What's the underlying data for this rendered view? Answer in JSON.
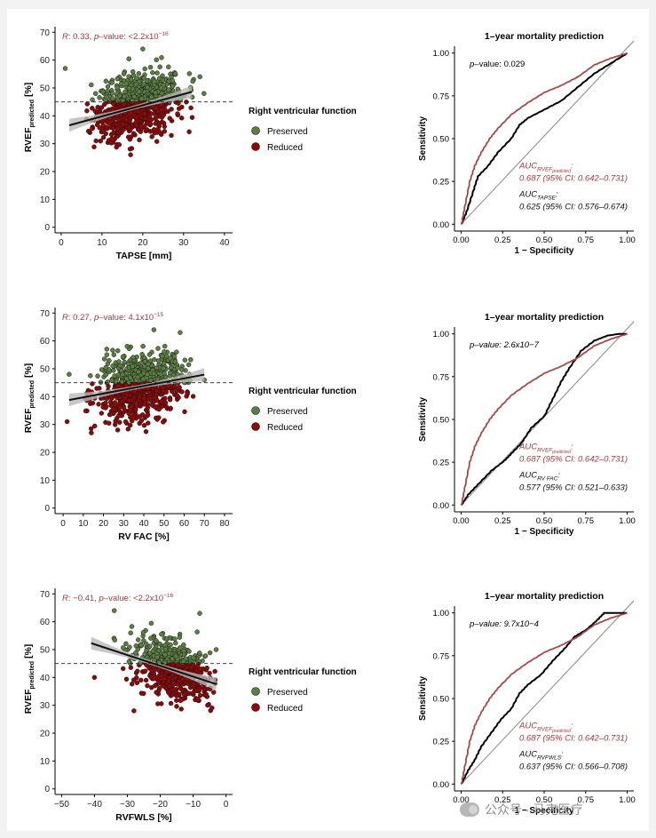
{
  "colors": {
    "preserved": "#5c7d44",
    "reduced": "#8b0b0b",
    "predicted_curve": "#a54848",
    "stat_text": "#a03a3a",
    "reg_line": "#111111",
    "ci_band": "#b9b9b9"
  },
  "legend": {
    "title": "Right ventricular function",
    "preserved": "Preserved",
    "reduced": "Reduced"
  },
  "chart_data": [
    {
      "type": "scatter",
      "id": "tapse_scatter",
      "xlabel": "TAPSE [mm]",
      "ylabel_main": "RVEF",
      "ylabel_sub": "predicted",
      "ylabel_unit": " [%]",
      "xlim": [
        -1.5,
        42
      ],
      "ylim": [
        -2,
        72
      ],
      "xticks": [
        0,
        10,
        20,
        30,
        40
      ],
      "yticks": [
        0,
        10,
        20,
        30,
        40,
        50,
        60,
        70
      ],
      "threshold": 45,
      "regression": {
        "x": [
          2,
          32
        ],
        "y": [
          36.6,
          48.6
        ]
      },
      "stat": {
        "r_label": "R",
        "r_value": ": 0.33, ",
        "p_label": "p",
        "p_value": "–value: <2.2x10",
        "p_exp": "−16"
      },
      "cloud": {
        "x_mean": 19,
        "x_sd": 5.5,
        "x_min": 6,
        "x_max": 35,
        "y_sd": 5.5,
        "y_min": 26,
        "y_max": 63,
        "slope": 0.4,
        "intercept": 35.8,
        "n": 800
      },
      "highlights": [
        {
          "x": 1,
          "y": 57
        },
        {
          "x": 34,
          "y": 54
        },
        {
          "x": 35,
          "y": 48
        },
        {
          "x": 20,
          "y": 64
        },
        {
          "x": 17,
          "y": 26
        }
      ]
    },
    {
      "type": "scatter",
      "id": "fac_scatter",
      "xlabel": "RV FAC [%]",
      "ylabel_main": "RVEF",
      "ylabel_sub": "predicted",
      "ylabel_unit": " [%]",
      "xlim": [
        -4,
        84
      ],
      "ylim": [
        -2,
        72
      ],
      "xticks": [
        0,
        10,
        20,
        30,
        40,
        50,
        60,
        70,
        80
      ],
      "yticks": [
        0,
        10,
        20,
        30,
        40,
        50,
        60,
        70
      ],
      "threshold": 45,
      "regression": {
        "x": [
          3,
          70
        ],
        "y": [
          38.8,
          47.9
        ]
      },
      "stat": {
        "r_label": "R",
        "r_value": ": 0.27, ",
        "p_label": "p",
        "p_value": "–value: 4.1x10",
        "p_exp": "−15"
      },
      "cloud": {
        "x_mean": 38,
        "x_sd": 11,
        "x_min": 10,
        "x_max": 66,
        "y_sd": 5.5,
        "y_min": 27,
        "y_max": 62,
        "slope": 0.135,
        "intercept": 38.4,
        "n": 800
      },
      "highlights": [
        {
          "x": 2,
          "y": 31
        },
        {
          "x": 3,
          "y": 48
        },
        {
          "x": 58,
          "y": 63
        },
        {
          "x": 45,
          "y": 64
        },
        {
          "x": 70,
          "y": 46
        },
        {
          "x": 14,
          "y": 27
        }
      ]
    },
    {
      "type": "scatter",
      "id": "rvfwls_scatter",
      "xlabel": "RVFWLS [%]",
      "ylabel_main": "RVEF",
      "ylabel_sub": "predicted",
      "ylabel_unit": " [%]",
      "xlim": [
        -52,
        2
      ],
      "ylim": [
        -2,
        72
      ],
      "xticks": [
        -50,
        -40,
        -30,
        -20,
        -10,
        0
      ],
      "xticklabels": [
        "−50",
        "−40",
        "−30",
        "−20",
        "−10",
        "0"
      ],
      "yticks": [
        0,
        10,
        20,
        30,
        40,
        50,
        60,
        70
      ],
      "threshold": 45,
      "regression": {
        "x": [
          -41,
          -3
        ],
        "y": [
          52.3,
          37.6
        ]
      },
      "stat": {
        "r_label": "R",
        "r_value": ": −0.41, ",
        "p_label": "p",
        "p_value": "–value: <2.2x10",
        "p_exp": "−16"
      },
      "cloud": {
        "x_mean": -16,
        "x_sd": 6,
        "x_min": -40,
        "x_max": -2,
        "y_sd": 5,
        "y_min": 27,
        "y_max": 62,
        "slope": -0.39,
        "intercept": 36.4,
        "n": 600
      },
      "highlights": [
        {
          "x": -34,
          "y": 64
        },
        {
          "x": -40,
          "y": 40
        },
        {
          "x": -8,
          "y": 63
        },
        {
          "x": -28,
          "y": 28
        },
        {
          "x": -3,
          "y": 50
        }
      ]
    },
    {
      "type": "line",
      "id": "roc_tapse",
      "title": "1–year mortality prediction",
      "xlabel": "1 − Specificity",
      "ylabel": "Sensitivity",
      "xlim": [
        0,
        1
      ],
      "ylim": [
        0,
        1
      ],
      "ticks": [
        0,
        0.25,
        0.5,
        0.75,
        1
      ],
      "ticklabels": [
        "0.00",
        "0.25",
        "0.50",
        "0.75",
        "1.00"
      ],
      "p_label": "p",
      "p_text": "–value: 0.029",
      "p_italic": false,
      "auc_pred": {
        "prefix": "AUC",
        "sub": "RVEF",
        "subsub": "predicted",
        "suffix": ":",
        "text": "0.687 (95% CI: 0.642–0.731)"
      },
      "auc_other": {
        "prefix": "AUC",
        "sub": "TAPSE",
        "suffix": ":",
        "text": "0.625 (95% CI: 0.576–0.674)"
      },
      "series": [
        {
          "name": "RVEF predicted",
          "x": [
            0,
            0.02,
            0.05,
            0.08,
            0.12,
            0.17,
            0.22,
            0.3,
            0.4,
            0.5,
            0.6,
            0.7,
            0.8,
            0.9,
            1
          ],
          "y": [
            0,
            0.1,
            0.25,
            0.34,
            0.42,
            0.5,
            0.56,
            0.64,
            0.71,
            0.77,
            0.81,
            0.86,
            0.93,
            0.97,
            1
          ]
        },
        {
          "name": "TAPSE",
          "x": [
            0,
            0.03,
            0.07,
            0.1,
            0.16,
            0.22,
            0.3,
            0.35,
            0.4,
            0.5,
            0.6,
            0.7,
            0.8,
            0.9,
            1
          ],
          "y": [
            0,
            0.07,
            0.19,
            0.28,
            0.34,
            0.42,
            0.5,
            0.58,
            0.62,
            0.67,
            0.72,
            0.8,
            0.88,
            0.94,
            1
          ]
        }
      ]
    },
    {
      "type": "line",
      "id": "roc_fac",
      "title": "1–year mortality prediction",
      "xlabel": "1 − Specificity",
      "ylabel": "Sensitivity",
      "xlim": [
        0,
        1
      ],
      "ylim": [
        0,
        1
      ],
      "ticks": [
        0,
        0.25,
        0.5,
        0.75,
        1
      ],
      "ticklabels": [
        "0.00",
        "0.25",
        "0.50",
        "0.75",
        "1.00"
      ],
      "p_label": "p",
      "p_text": "–value: 2.6x10−7",
      "p_italic": true,
      "auc_pred": {
        "prefix": "AUC",
        "sub": "RVEF",
        "subsub": "predicted",
        "suffix": ":",
        "text": "0.687 (95% CI: 0.642–0.731)"
      },
      "auc_other": {
        "prefix": "AUC",
        "sub": "RV FAC",
        "suffix": ":",
        "text": "0.577 (95% CI: 0.521–0.633)"
      },
      "series": [
        {
          "name": "RVEF predicted",
          "x": [
            0,
            0.02,
            0.05,
            0.08,
            0.12,
            0.17,
            0.22,
            0.3,
            0.4,
            0.5,
            0.6,
            0.7,
            0.8,
            0.9,
            1
          ],
          "y": [
            0,
            0.1,
            0.25,
            0.34,
            0.42,
            0.5,
            0.56,
            0.64,
            0.71,
            0.77,
            0.81,
            0.86,
            0.93,
            0.97,
            1
          ]
        },
        {
          "name": "RV FAC",
          "x": [
            0,
            0.04,
            0.1,
            0.18,
            0.26,
            0.3,
            0.36,
            0.42,
            0.5,
            0.55,
            0.6,
            0.65,
            0.72,
            0.8,
            0.88,
            0.95,
            1
          ],
          "y": [
            0,
            0.06,
            0.12,
            0.2,
            0.26,
            0.3,
            0.36,
            0.45,
            0.52,
            0.62,
            0.72,
            0.8,
            0.9,
            0.96,
            0.99,
            1,
            1
          ]
        }
      ]
    },
    {
      "type": "line",
      "id": "roc_rvfwls",
      "title": "1–year mortality prediction",
      "xlabel": "1 − Specificity",
      "ylabel": "Sensitivity",
      "xlim": [
        0,
        1
      ],
      "ylim": [
        0,
        1
      ],
      "ticks": [
        0,
        0.25,
        0.5,
        0.75,
        1
      ],
      "ticklabels": [
        "0.00",
        "0.25",
        "0.50",
        "0.75",
        "1.00"
      ],
      "p_label": "p",
      "p_text": "–value: 9.7x10−4",
      "p_italic": true,
      "auc_pred": {
        "prefix": "AUC",
        "sub": "RVEF",
        "subsub": "predicted",
        "suffix": ":",
        "text": "0.687 (95% CI: 0.642–0.731)"
      },
      "auc_other": {
        "prefix": "AUC",
        "sub": "RVFWLS",
        "suffix": ":",
        "text": "0.637 (95% CI: 0.566–0.708)"
      },
      "series": [
        {
          "name": "RVEF predicted",
          "x": [
            0,
            0.02,
            0.05,
            0.08,
            0.12,
            0.17,
            0.22,
            0.3,
            0.4,
            0.5,
            0.6,
            0.7,
            0.8,
            0.9,
            1
          ],
          "y": [
            0,
            0.1,
            0.25,
            0.34,
            0.42,
            0.5,
            0.56,
            0.64,
            0.71,
            0.77,
            0.81,
            0.86,
            0.93,
            0.97,
            1
          ]
        },
        {
          "name": "RVFWLS",
          "x": [
            0,
            0.04,
            0.08,
            0.12,
            0.18,
            0.24,
            0.3,
            0.35,
            0.4,
            0.48,
            0.55,
            0.62,
            0.68,
            0.75,
            0.82,
            0.86,
            0.9,
            1
          ],
          "y": [
            0,
            0.08,
            0.14,
            0.22,
            0.3,
            0.38,
            0.44,
            0.53,
            0.58,
            0.64,
            0.72,
            0.79,
            0.86,
            0.9,
            0.96,
            1,
            1,
            1
          ]
        }
      ]
    }
  ],
  "watermark": "公众号 · 马克医疗"
}
